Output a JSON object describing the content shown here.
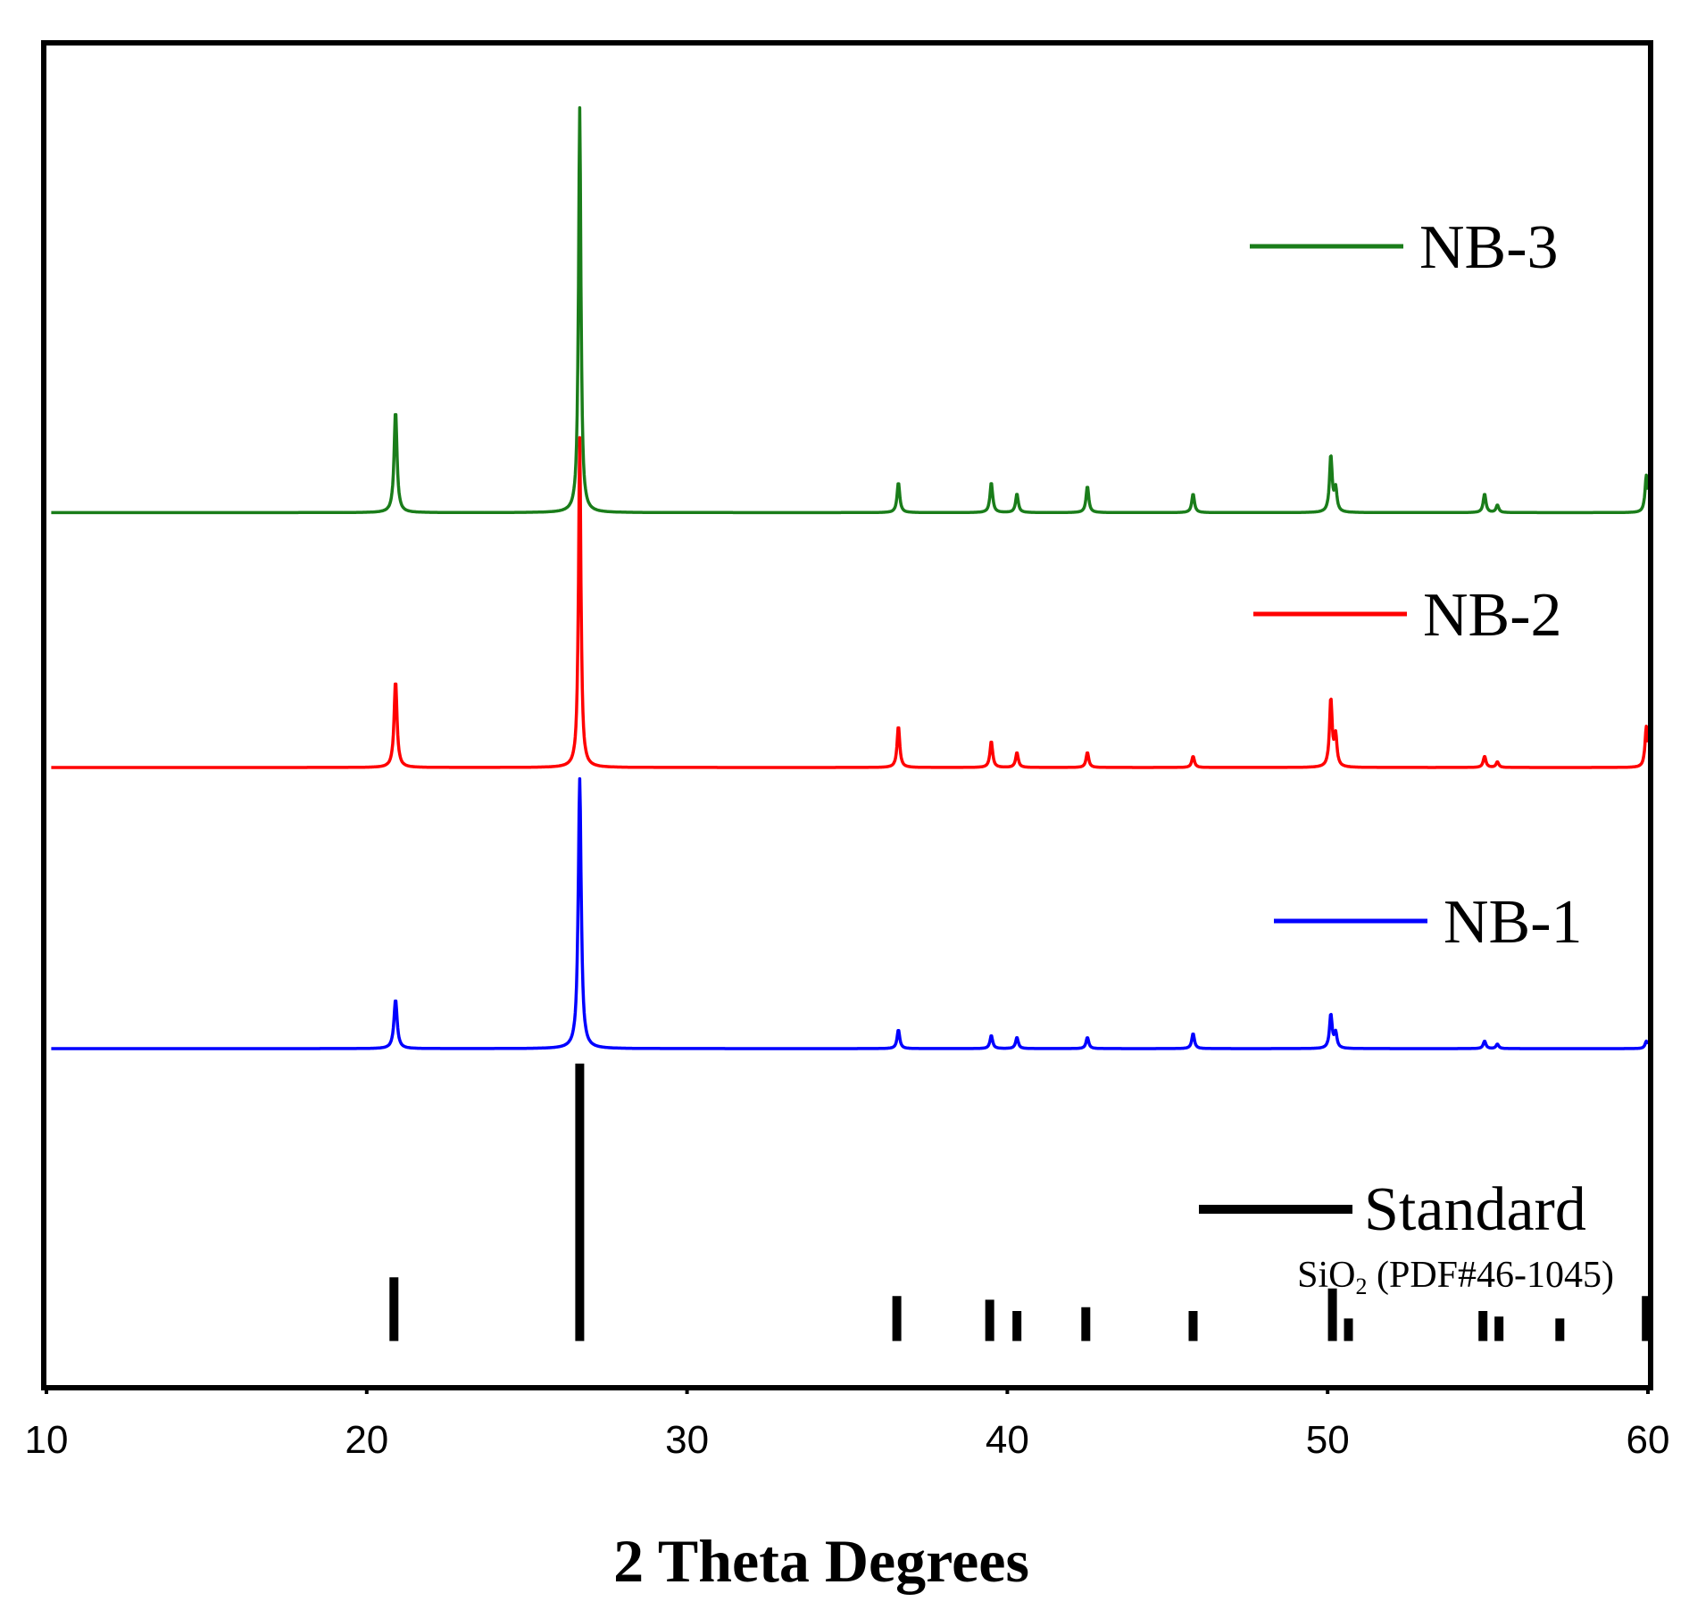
{
  "chart_data": {
    "type": "line",
    "xlabel": "2 Theta Degrees",
    "ylabel": "",
    "xlim": [
      10,
      60
    ],
    "xticks": [
      "10",
      "20",
      "30",
      "40",
      "50",
      "60"
    ],
    "legend_placement": "right, beside each trace",
    "series": [
      {
        "name": "NB-3",
        "color": "#1a7d1a",
        "offset": 0.68,
        "peaks": [
          {
            "x": 20.9,
            "h": 0.27,
            "w": 0.11
          },
          {
            "x": 26.65,
            "h": 1.08,
            "w": 0.09
          },
          {
            "x": 36.6,
            "h": 0.08,
            "w": 0.1
          },
          {
            "x": 39.5,
            "h": 0.08,
            "w": 0.1
          },
          {
            "x": 40.3,
            "h": 0.05,
            "w": 0.1
          },
          {
            "x": 42.5,
            "h": 0.07,
            "w": 0.1
          },
          {
            "x": 45.8,
            "h": 0.05,
            "w": 0.1
          },
          {
            "x": 50.1,
            "h": 0.15,
            "w": 0.1
          },
          {
            "x": 50.25,
            "h": 0.06,
            "w": 0.1
          },
          {
            "x": 54.9,
            "h": 0.05,
            "w": 0.1
          },
          {
            "x": 55.3,
            "h": 0.02,
            "w": 0.1
          },
          {
            "x": 59.95,
            "h": 0.1,
            "w": 0.1
          }
        ]
      },
      {
        "name": "NB-2",
        "color": "#ff0000",
        "offset": 0.0,
        "peaks": [
          {
            "x": 20.9,
            "h": 0.23,
            "w": 0.11
          },
          {
            "x": 26.65,
            "h": 0.88,
            "w": 0.09
          },
          {
            "x": 36.6,
            "h": 0.11,
            "w": 0.1
          },
          {
            "x": 39.5,
            "h": 0.07,
            "w": 0.1
          },
          {
            "x": 40.3,
            "h": 0.04,
            "w": 0.1
          },
          {
            "x": 42.5,
            "h": 0.04,
            "w": 0.1
          },
          {
            "x": 45.8,
            "h": 0.03,
            "w": 0.1
          },
          {
            "x": 50.1,
            "h": 0.18,
            "w": 0.1
          },
          {
            "x": 50.25,
            "h": 0.08,
            "w": 0.1
          },
          {
            "x": 54.9,
            "h": 0.03,
            "w": 0.1
          },
          {
            "x": 55.3,
            "h": 0.015,
            "w": 0.1
          },
          {
            "x": 59.95,
            "h": 0.11,
            "w": 0.1
          }
        ]
      },
      {
        "name": "NB-1",
        "color": "#0000ff",
        "offset": -0.75,
        "peaks": [
          {
            "x": 20.9,
            "h": 0.13,
            "w": 0.12
          },
          {
            "x": 26.65,
            "h": 0.72,
            "w": 0.11
          },
          {
            "x": 36.6,
            "h": 0.05,
            "w": 0.1
          },
          {
            "x": 39.5,
            "h": 0.035,
            "w": 0.1
          },
          {
            "x": 40.3,
            "h": 0.03,
            "w": 0.1
          },
          {
            "x": 42.5,
            "h": 0.03,
            "w": 0.1
          },
          {
            "x": 45.8,
            "h": 0.04,
            "w": 0.1
          },
          {
            "x": 50.1,
            "h": 0.09,
            "w": 0.1
          },
          {
            "x": 50.25,
            "h": 0.04,
            "w": 0.1
          },
          {
            "x": 54.9,
            "h": 0.02,
            "w": 0.1
          },
          {
            "x": 55.3,
            "h": 0.012,
            "w": 0.1
          },
          {
            "x": 59.95,
            "h": 0.02,
            "w": 0.1
          }
        ]
      }
    ],
    "reference": {
      "name": "Standard",
      "note_prefix": "SiO",
      "note_sub": "2",
      "note_suffix": " (PDF#46-1045)",
      "color": "#000000",
      "offset": -1.53,
      "sticks": [
        {
          "x": 20.85,
          "h": 0.17
        },
        {
          "x": 26.65,
          "h": 0.74
        },
        {
          "x": 36.55,
          "h": 0.12
        },
        {
          "x": 39.45,
          "h": 0.11
        },
        {
          "x": 40.3,
          "h": 0.08
        },
        {
          "x": 42.45,
          "h": 0.09
        },
        {
          "x": 45.8,
          "h": 0.08
        },
        {
          "x": 50.15,
          "h": 0.14
        },
        {
          "x": 50.65,
          "h": 0.06
        },
        {
          "x": 54.85,
          "h": 0.08
        },
        {
          "x": 55.35,
          "h": 0.065
        },
        {
          "x": 57.25,
          "h": 0.06
        },
        {
          "x": 59.95,
          "h": 0.12
        }
      ]
    }
  }
}
